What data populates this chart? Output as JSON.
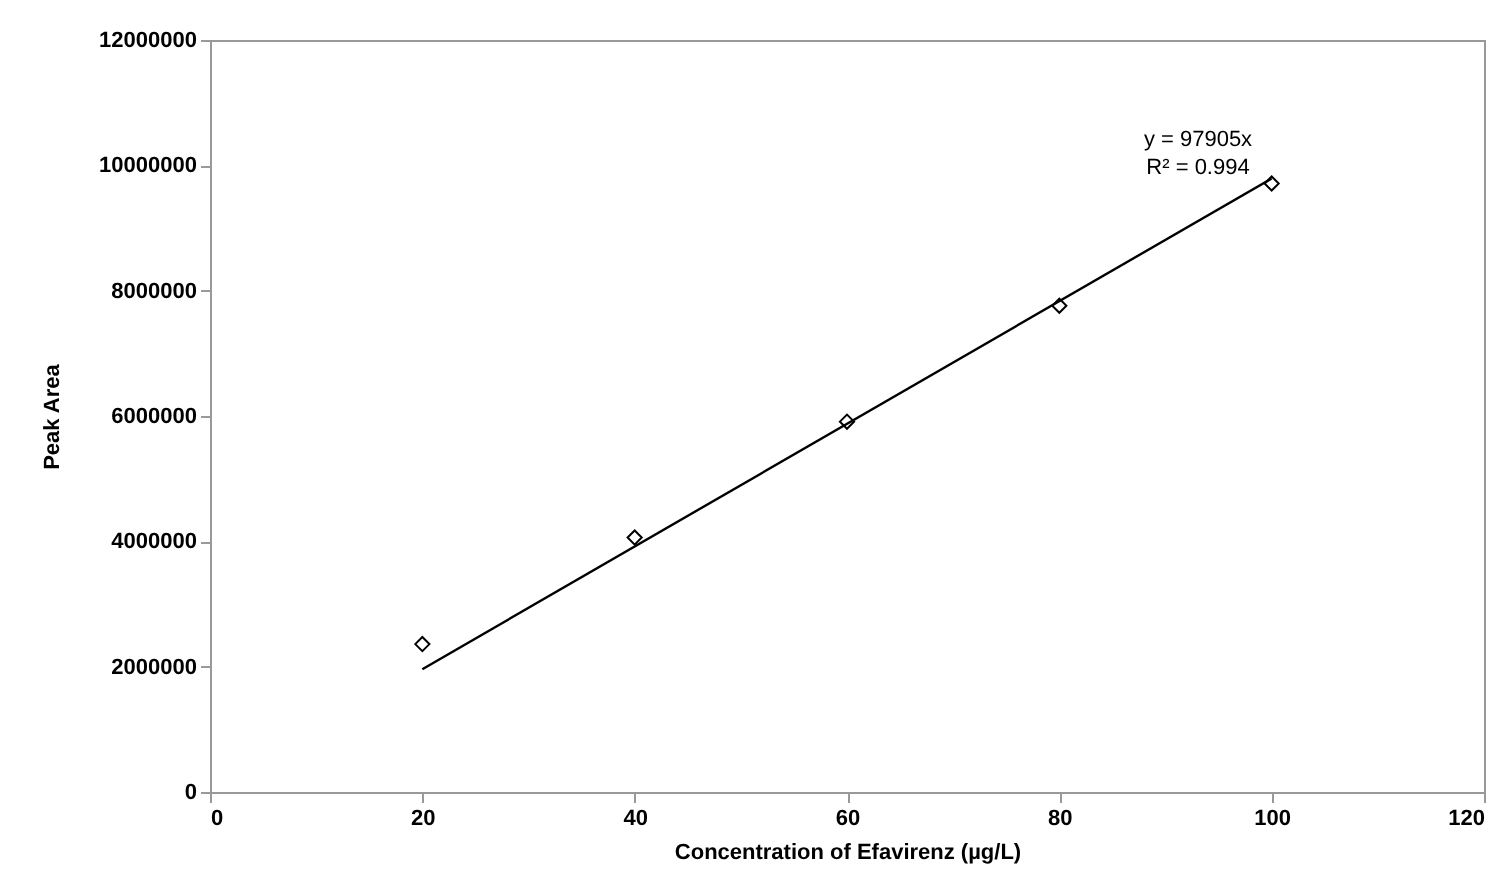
{
  "chart_data": {
    "type": "scatter",
    "xlabel": "Concentration of Efavirenz (µg/L)",
    "ylabel": "Peak Area",
    "x": [
      20,
      40,
      60,
      80,
      100
    ],
    "series": [
      {
        "color": "#000000",
        "marker": "diamond",
        "values": [
          2360000,
          4060000,
          5910000,
          7760000,
          9710000
        ]
      },
      {
        "type": "line",
        "color": "#000000",
        "marker": "none",
        "x": [
          20,
          100
        ],
        "values": [
          1960000,
          9790000
        ]
      }
    ],
    "xlim": [
      0,
      120
    ],
    "xticks": [
      0,
      20,
      40,
      60,
      80,
      100,
      120
    ],
    "ylim": [
      0,
      12000000
    ],
    "yticks": [
      0,
      2000000,
      4000000,
      6000000,
      8000000,
      10000000,
      12000000
    ],
    "grid": false,
    "annotations": [
      "y = 97905x",
      "R² = 0.994"
    ]
  }
}
